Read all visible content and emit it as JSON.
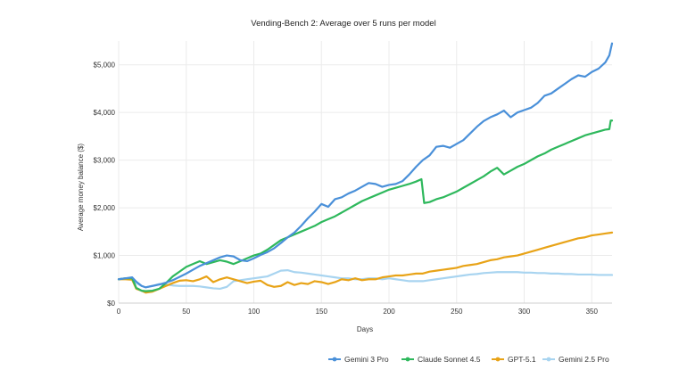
{
  "chart_data": {
    "type": "line",
    "title": "Vending-Bench 2: Average over 5 runs per model",
    "xlabel": "Days",
    "ylabel": "Average money balance ($)",
    "xlim": [
      0,
      365
    ],
    "ylim": [
      0,
      5500
    ],
    "x_ticks": [
      0,
      50,
      100,
      150,
      200,
      250,
      300,
      350
    ],
    "y_ticks": [
      0,
      1000,
      2000,
      3000,
      4000,
      5000
    ],
    "y_tick_labels": [
      "$0",
      "$1,000",
      "$2,000",
      "$3,000",
      "$4,000",
      "$5,000"
    ],
    "grid": true,
    "legend_position": "bottom-right",
    "series": [
      {
        "name": "Gemini 3 Pro",
        "color": "#4a90d9",
        "points": [
          [
            0,
            500
          ],
          [
            5,
            520
          ],
          [
            10,
            540
          ],
          [
            13,
            450
          ],
          [
            17,
            360
          ],
          [
            20,
            330
          ],
          [
            25,
            360
          ],
          [
            30,
            390
          ],
          [
            35,
            430
          ],
          [
            40,
            480
          ],
          [
            45,
            550
          ],
          [
            50,
            620
          ],
          [
            55,
            700
          ],
          [
            60,
            780
          ],
          [
            65,
            840
          ],
          [
            70,
            900
          ],
          [
            75,
            960
          ],
          [
            80,
            1000
          ],
          [
            85,
            980
          ],
          [
            90,
            900
          ],
          [
            95,
            880
          ],
          [
            100,
            940
          ],
          [
            105,
            1010
          ],
          [
            110,
            1070
          ],
          [
            115,
            1150
          ],
          [
            120,
            1260
          ],
          [
            125,
            1380
          ],
          [
            130,
            1480
          ],
          [
            135,
            1620
          ],
          [
            140,
            1780
          ],
          [
            145,
            1920
          ],
          [
            150,
            2080
          ],
          [
            155,
            2020
          ],
          [
            160,
            2180
          ],
          [
            165,
            2220
          ],
          [
            170,
            2300
          ],
          [
            175,
            2360
          ],
          [
            180,
            2440
          ],
          [
            185,
            2520
          ],
          [
            190,
            2500
          ],
          [
            195,
            2440
          ],
          [
            200,
            2480
          ],
          [
            205,
            2500
          ],
          [
            210,
            2560
          ],
          [
            215,
            2700
          ],
          [
            220,
            2860
          ],
          [
            225,
            3000
          ],
          [
            230,
            3100
          ],
          [
            235,
            3280
          ],
          [
            240,
            3300
          ],
          [
            245,
            3260
          ],
          [
            250,
            3340
          ],
          [
            255,
            3420
          ],
          [
            260,
            3560
          ],
          [
            265,
            3700
          ],
          [
            270,
            3820
          ],
          [
            275,
            3900
          ],
          [
            280,
            3960
          ],
          [
            285,
            4040
          ],
          [
            290,
            3900
          ],
          [
            295,
            4000
          ],
          [
            300,
            4050
          ],
          [
            305,
            4100
          ],
          [
            310,
            4200
          ],
          [
            315,
            4350
          ],
          [
            320,
            4400
          ],
          [
            325,
            4500
          ],
          [
            330,
            4600
          ],
          [
            335,
            4700
          ],
          [
            340,
            4780
          ],
          [
            345,
            4750
          ],
          [
            350,
            4850
          ],
          [
            355,
            4920
          ],
          [
            360,
            5050
          ],
          [
            363,
            5200
          ],
          [
            365,
            5450
          ]
        ]
      },
      {
        "name": "Claude Sonnet 4.5",
        "color": "#2eb85c",
        "points": [
          [
            0,
            500
          ],
          [
            5,
            520
          ],
          [
            10,
            520
          ],
          [
            13,
            320
          ],
          [
            17,
            260
          ],
          [
            20,
            250
          ],
          [
            25,
            260
          ],
          [
            30,
            300
          ],
          [
            35,
            420
          ],
          [
            40,
            560
          ],
          [
            45,
            660
          ],
          [
            50,
            760
          ],
          [
            55,
            820
          ],
          [
            60,
            880
          ],
          [
            65,
            820
          ],
          [
            70,
            860
          ],
          [
            75,
            900
          ],
          [
            80,
            870
          ],
          [
            85,
            820
          ],
          [
            90,
            880
          ],
          [
            95,
            940
          ],
          [
            100,
            1000
          ],
          [
            105,
            1040
          ],
          [
            110,
            1120
          ],
          [
            115,
            1220
          ],
          [
            120,
            1320
          ],
          [
            125,
            1380
          ],
          [
            130,
            1440
          ],
          [
            135,
            1500
          ],
          [
            140,
            1560
          ],
          [
            145,
            1620
          ],
          [
            150,
            1700
          ],
          [
            155,
            1760
          ],
          [
            160,
            1820
          ],
          [
            165,
            1900
          ],
          [
            170,
            1980
          ],
          [
            175,
            2060
          ],
          [
            180,
            2140
          ],
          [
            185,
            2200
          ],
          [
            190,
            2260
          ],
          [
            195,
            2320
          ],
          [
            200,
            2380
          ],
          [
            205,
            2420
          ],
          [
            210,
            2460
          ],
          [
            215,
            2500
          ],
          [
            220,
            2550
          ],
          [
            224,
            2600
          ],
          [
            226,
            2100
          ],
          [
            230,
            2120
          ],
          [
            235,
            2180
          ],
          [
            240,
            2220
          ],
          [
            245,
            2280
          ],
          [
            250,
            2340
          ],
          [
            255,
            2420
          ],
          [
            260,
            2500
          ],
          [
            265,
            2580
          ],
          [
            270,
            2660
          ],
          [
            275,
            2760
          ],
          [
            280,
            2840
          ],
          [
            285,
            2700
          ],
          [
            290,
            2780
          ],
          [
            295,
            2860
          ],
          [
            300,
            2920
          ],
          [
            305,
            3000
          ],
          [
            310,
            3080
          ],
          [
            315,
            3140
          ],
          [
            320,
            3220
          ],
          [
            325,
            3280
          ],
          [
            330,
            3340
          ],
          [
            335,
            3400
          ],
          [
            340,
            3460
          ],
          [
            345,
            3520
          ],
          [
            350,
            3560
          ],
          [
            355,
            3600
          ],
          [
            360,
            3640
          ],
          [
            363,
            3650
          ],
          [
            364,
            3830
          ],
          [
            365,
            3830
          ]
        ]
      },
      {
        "name": "GPT-5.1",
        "color": "#e8a317",
        "points": [
          [
            0,
            500
          ],
          [
            5,
            500
          ],
          [
            10,
            490
          ],
          [
            13,
            300
          ],
          [
            17,
            260
          ],
          [
            20,
            220
          ],
          [
            25,
            240
          ],
          [
            30,
            300
          ],
          [
            35,
            360
          ],
          [
            40,
            420
          ],
          [
            45,
            470
          ],
          [
            50,
            480
          ],
          [
            55,
            460
          ],
          [
            60,
            500
          ],
          [
            65,
            560
          ],
          [
            70,
            440
          ],
          [
            75,
            500
          ],
          [
            80,
            540
          ],
          [
            85,
            500
          ],
          [
            90,
            460
          ],
          [
            95,
            420
          ],
          [
            100,
            450
          ],
          [
            105,
            470
          ],
          [
            110,
            380
          ],
          [
            115,
            340
          ],
          [
            120,
            360
          ],
          [
            125,
            440
          ],
          [
            130,
            380
          ],
          [
            135,
            420
          ],
          [
            140,
            400
          ],
          [
            145,
            460
          ],
          [
            150,
            440
          ],
          [
            155,
            400
          ],
          [
            160,
            440
          ],
          [
            165,
            500
          ],
          [
            170,
            480
          ],
          [
            175,
            520
          ],
          [
            180,
            480
          ],
          [
            185,
            500
          ],
          [
            190,
            500
          ],
          [
            195,
            540
          ],
          [
            200,
            560
          ],
          [
            205,
            580
          ],
          [
            210,
            580
          ],
          [
            215,
            600
          ],
          [
            220,
            620
          ],
          [
            225,
            620
          ],
          [
            230,
            660
          ],
          [
            235,
            680
          ],
          [
            240,
            700
          ],
          [
            245,
            720
          ],
          [
            250,
            740
          ],
          [
            255,
            780
          ],
          [
            260,
            800
          ],
          [
            265,
            820
          ],
          [
            270,
            860
          ],
          [
            275,
            900
          ],
          [
            280,
            920
          ],
          [
            285,
            960
          ],
          [
            290,
            980
          ],
          [
            295,
            1000
          ],
          [
            300,
            1040
          ],
          [
            305,
            1080
          ],
          [
            310,
            1120
          ],
          [
            315,
            1160
          ],
          [
            320,
            1200
          ],
          [
            325,
            1240
          ],
          [
            330,
            1280
          ],
          [
            335,
            1320
          ],
          [
            340,
            1360
          ],
          [
            345,
            1380
          ],
          [
            350,
            1420
          ],
          [
            355,
            1440
          ],
          [
            360,
            1460
          ],
          [
            365,
            1480
          ]
        ]
      },
      {
        "name": "Gemini 2.5 Pro",
        "color": "#a8d4f0",
        "points": [
          [
            0,
            500
          ],
          [
            5,
            520
          ],
          [
            10,
            500
          ],
          [
            13,
            420
          ],
          [
            17,
            360
          ],
          [
            20,
            330
          ],
          [
            25,
            360
          ],
          [
            30,
            400
          ],
          [
            35,
            390
          ],
          [
            40,
            370
          ],
          [
            45,
            360
          ],
          [
            50,
            360
          ],
          [
            55,
            360
          ],
          [
            60,
            350
          ],
          [
            65,
            330
          ],
          [
            70,
            310
          ],
          [
            75,
            300
          ],
          [
            80,
            340
          ],
          [
            85,
            460
          ],
          [
            90,
            480
          ],
          [
            95,
            500
          ],
          [
            100,
            520
          ],
          [
            105,
            540
          ],
          [
            110,
            560
          ],
          [
            115,
            620
          ],
          [
            120,
            680
          ],
          [
            125,
            690
          ],
          [
            130,
            650
          ],
          [
            135,
            640
          ],
          [
            140,
            620
          ],
          [
            145,
            600
          ],
          [
            150,
            580
          ],
          [
            155,
            560
          ],
          [
            160,
            540
          ],
          [
            165,
            520
          ],
          [
            170,
            520
          ],
          [
            175,
            500
          ],
          [
            180,
            500
          ],
          [
            185,
            520
          ],
          [
            190,
            520
          ],
          [
            195,
            500
          ],
          [
            200,
            520
          ],
          [
            205,
            500
          ],
          [
            210,
            480
          ],
          [
            215,
            460
          ],
          [
            220,
            460
          ],
          [
            225,
            460
          ],
          [
            230,
            480
          ],
          [
            235,
            500
          ],
          [
            240,
            520
          ],
          [
            245,
            540
          ],
          [
            250,
            560
          ],
          [
            255,
            580
          ],
          [
            260,
            600
          ],
          [
            265,
            610
          ],
          [
            270,
            630
          ],
          [
            275,
            640
          ],
          [
            280,
            650
          ],
          [
            285,
            650
          ],
          [
            290,
            650
          ],
          [
            295,
            650
          ],
          [
            300,
            640
          ],
          [
            305,
            640
          ],
          [
            310,
            630
          ],
          [
            315,
            630
          ],
          [
            320,
            620
          ],
          [
            325,
            620
          ],
          [
            330,
            610
          ],
          [
            335,
            610
          ],
          [
            340,
            600
          ],
          [
            345,
            600
          ],
          [
            350,
            600
          ],
          [
            355,
            590
          ],
          [
            360,
            590
          ],
          [
            365,
            590
          ]
        ]
      }
    ]
  }
}
